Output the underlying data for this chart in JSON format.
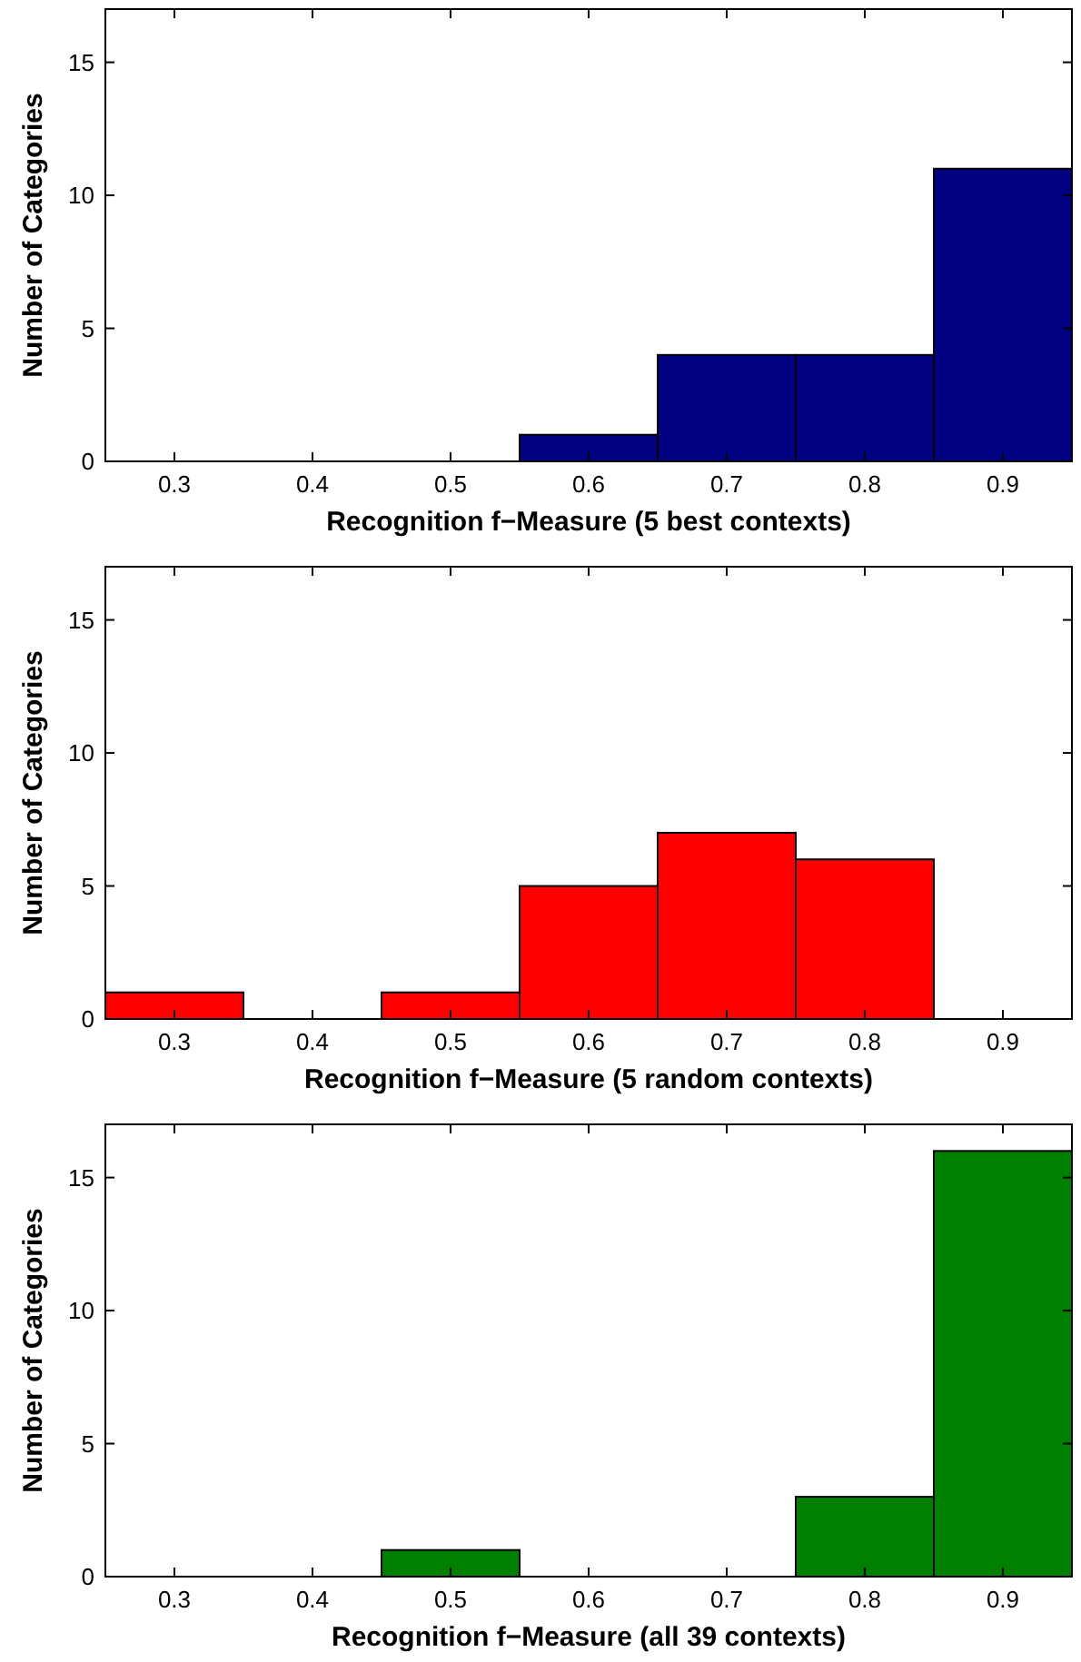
{
  "chart_data": [
    {
      "type": "histogram",
      "xlabel": "Recognition f−Measure (5 best contexts)",
      "ylabel": "Number of Categories",
      "bins": [
        0.25,
        0.35,
        0.45,
        0.55,
        0.65,
        0.75,
        0.85,
        0.95
      ],
      "values": [
        0,
        0,
        0,
        1,
        4,
        4,
        11
      ],
      "color": "#000080",
      "xlim": [
        0.25,
        0.95
      ],
      "ylim": [
        0,
        17
      ],
      "xticks": [
        0.3,
        0.4,
        0.5,
        0.6,
        0.7,
        0.8,
        0.9
      ],
      "yticks": [
        0,
        5,
        10,
        15
      ],
      "grid": false
    },
    {
      "type": "histogram",
      "xlabel": "Recognition f−Measure (5 random contexts)",
      "ylabel": "Number of Categories",
      "bins": [
        0.25,
        0.35,
        0.45,
        0.55,
        0.65,
        0.75,
        0.85,
        0.95
      ],
      "values": [
        1,
        0,
        1,
        5,
        7,
        6,
        0
      ],
      "color": "#ff0000",
      "xlim": [
        0.25,
        0.95
      ],
      "ylim": [
        0,
        17
      ],
      "xticks": [
        0.3,
        0.4,
        0.5,
        0.6,
        0.7,
        0.8,
        0.9
      ],
      "yticks": [
        0,
        5,
        10,
        15
      ],
      "grid": false
    },
    {
      "type": "histogram",
      "xlabel": "Recognition f−Measure (all 39 contexts)",
      "ylabel": "Number of Categories",
      "bins": [
        0.25,
        0.35,
        0.45,
        0.55,
        0.65,
        0.75,
        0.85,
        0.95
      ],
      "values": [
        0,
        0,
        1,
        0,
        0,
        3,
        16
      ],
      "color": "#008000",
      "xlim": [
        0.25,
        0.95
      ],
      "ylim": [
        0,
        17
      ],
      "xticks": [
        0.3,
        0.4,
        0.5,
        0.6,
        0.7,
        0.8,
        0.9
      ],
      "yticks": [
        0,
        5,
        10,
        15
      ],
      "grid": false
    }
  ]
}
